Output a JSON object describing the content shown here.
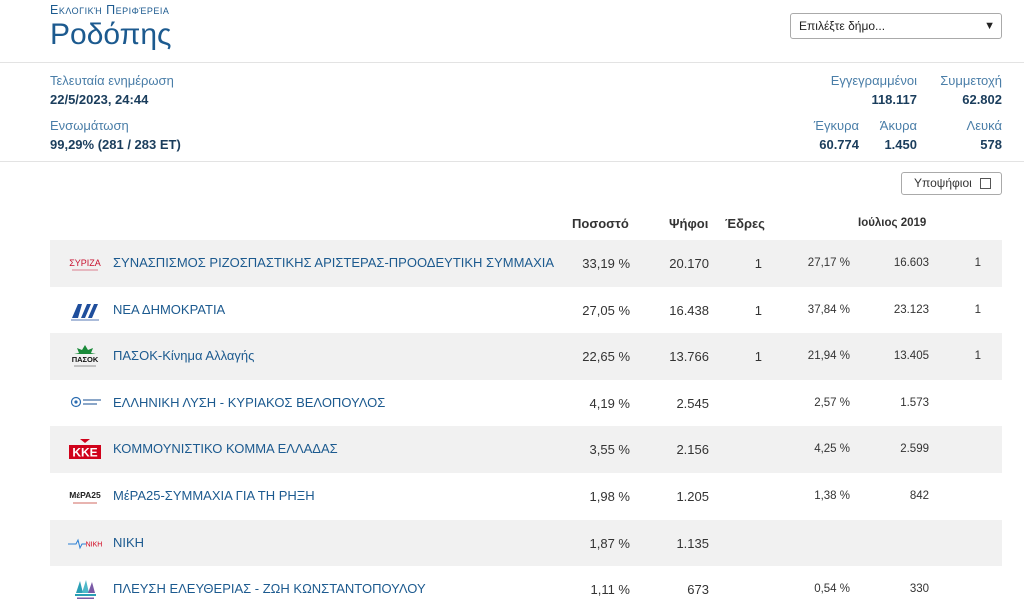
{
  "header": {
    "region_label": "Εκλογική Περιφέρεια",
    "region_title": "Ροδόπης",
    "select_placeholder": "Επιλέξτε δήμο..."
  },
  "stats": {
    "last_update_label": "Τελευταία ενημέρωση",
    "last_update_value": "22/5/2023, 24:44",
    "integration_label": "Ενσωμάτωση",
    "integration_value": "99,29% (281 / 283 ΕΤ)",
    "registered_label": "Εγγεγραμμένοι",
    "registered_value": "118.117",
    "turnout_label": "Συμμετοχή",
    "turnout_value": "62.802",
    "valid_label": "Έγκυρα",
    "valid_value": "60.774",
    "invalid_label": "Άκυρα",
    "invalid_value": "1.450",
    "blank_label": "Λευκά",
    "blank_value": "578"
  },
  "candidates_toggle": "Υποψήφιοι",
  "columns": {
    "percent": "Ποσοστό",
    "votes": "Ψήφοι",
    "seats": "Έδρες",
    "previous": "Ιούλιος 2019"
  },
  "parties": [
    {
      "logo": "syriza-logo",
      "name": "ΣΥΝΑΣΠΙΣΜΟΣ ΡΙΖΟΣΠΑΣΤΙΚΗΣ ΑΡΙΣΤΕΡΑΣ-ΠΡΟΟΔΕΥΤΙΚΗ ΣΥΜΜΑΧΙΑ",
      "percent": "33,19 %",
      "votes": "20.170",
      "seats": "1",
      "prev_percent": "27,17 %",
      "prev_votes": "16.603",
      "prev_seats": "1"
    },
    {
      "logo": "nd-logo",
      "name": "ΝΕΑ ΔΗΜΟΚΡΑΤΙΑ",
      "percent": "27,05 %",
      "votes": "16.438",
      "seats": "1",
      "prev_percent": "37,84 %",
      "prev_votes": "23.123",
      "prev_seats": "1"
    },
    {
      "logo": "pasok-logo",
      "name": "ΠΑΣΟΚ-Κίνημα Αλλαγής",
      "percent": "22,65 %",
      "votes": "13.766",
      "seats": "1",
      "prev_percent": "21,94 %",
      "prev_votes": "13.405",
      "prev_seats": "1"
    },
    {
      "logo": "elliniki-lysi-logo",
      "name": "ΕΛΛΗΝΙΚΗ ΛΥΣΗ - ΚΥΡΙΑΚΟΣ ΒΕΛΟΠΟΥΛΟΣ",
      "percent": "4,19 %",
      "votes": "2.545",
      "seats": "",
      "prev_percent": "2,57 %",
      "prev_votes": "1.573",
      "prev_seats": ""
    },
    {
      "logo": "kke-logo",
      "name": "ΚΟΜΜΟΥΝΙΣΤΙΚΟ ΚΟΜΜΑ ΕΛΛΑΔΑΣ",
      "percent": "3,55 %",
      "votes": "2.156",
      "seats": "",
      "prev_percent": "4,25 %",
      "prev_votes": "2.599",
      "prev_seats": ""
    },
    {
      "logo": "mera25-logo",
      "name": "ΜέΡΑ25-ΣΥΜΜΑΧΙΑ ΓΙΑ ΤΗ ΡΗΞΗ",
      "percent": "1,98 %",
      "votes": "1.205",
      "seats": "",
      "prev_percent": "1,38 %",
      "prev_votes": "842",
      "prev_seats": ""
    },
    {
      "logo": "niki-logo",
      "name": "ΝΙΚΗ",
      "percent": "1,87 %",
      "votes": "1.135",
      "seats": "",
      "prev_percent": "",
      "prev_votes": "",
      "prev_seats": ""
    },
    {
      "logo": "plefsi-logo",
      "name": "ΠΛΕΥΣΗ ΕΛΕΥΘΕΡΙΑΣ - ΖΩΗ ΚΩΝΣΤΑΝΤΟΠΟΥΛΟΥ",
      "percent": "1,11 %",
      "votes": "673",
      "seats": "",
      "prev_percent": "0,54 %",
      "prev_votes": "330",
      "prev_seats": ""
    }
  ],
  "logo_texts": {
    "syriza": "ΣΥΡΙΖΑ",
    "pasok": "ΠΑΣΟΚ",
    "kke": "ΚΚΕ",
    "mera25": "ΜέΡΑ25",
    "niki": "ΝΙΚΗ"
  },
  "colors": {
    "accent": "#1c5a8f",
    "row_shade": "#f1f1f1",
    "syriza": "#c8102e",
    "nd": "#1f4e9c",
    "pasok": "#1a8a3a",
    "kke": "#d0021b",
    "plefsi": "#2a9fb5"
  }
}
